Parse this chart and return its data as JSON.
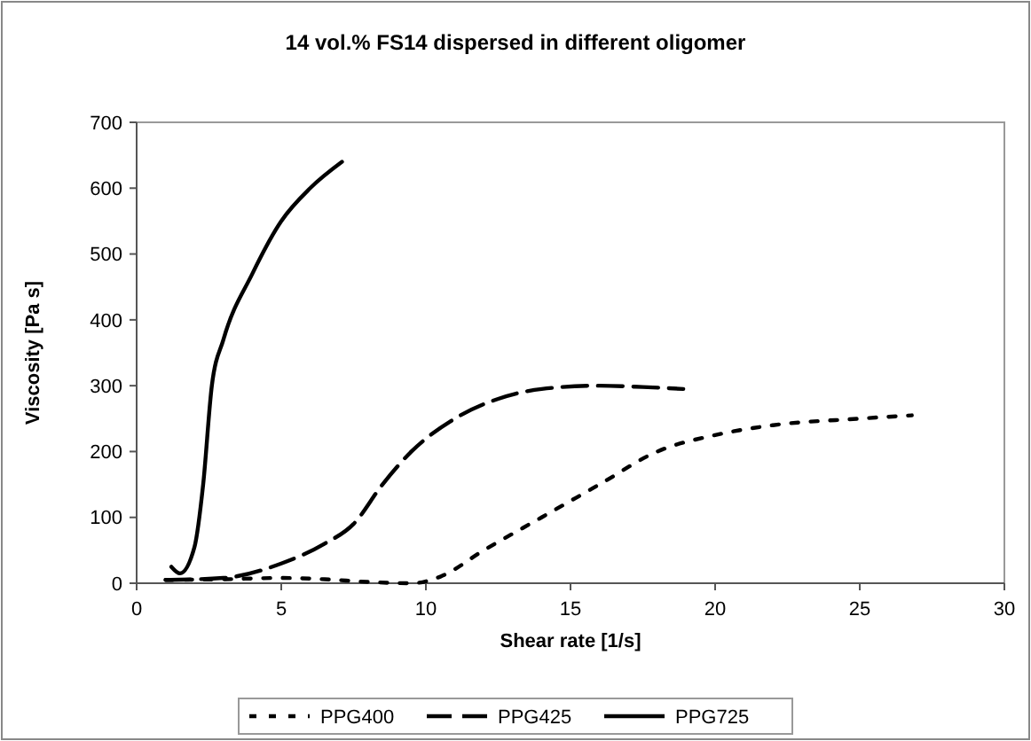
{
  "chart_data": {
    "type": "line",
    "title": "14 vol.% FS14 dispersed in different oligomer",
    "xlabel": "Shear rate [1/s]",
    "ylabel": "Viscosity [Pa s]",
    "xlim": [
      0,
      30
    ],
    "xticks": [
      0,
      5,
      10,
      15,
      20,
      25,
      30
    ],
    "ylim": [
      0,
      700
    ],
    "yticks": [
      0,
      100,
      200,
      300,
      400,
      500,
      600,
      700
    ],
    "grid": false,
    "legend": "bottom",
    "marker": "none",
    "series": [
      {
        "name": "PPG400",
        "color": "#000000",
        "line_style": "dotted",
        "x": [
          1,
          3,
          5,
          6.5,
          8,
          9.5,
          10.5,
          12,
          14,
          16,
          18,
          20,
          22,
          25,
          26.8
        ],
        "values": [
          5,
          6,
          8,
          6,
          2,
          0,
          10,
          50,
          100,
          150,
          200,
          225,
          240,
          250,
          255
        ]
      },
      {
        "name": "PPG425",
        "color": "#000000",
        "line_style": "dashed",
        "x": [
          1,
          3,
          5,
          6.5,
          7.5,
          8.5,
          9.5,
          11,
          12.5,
          14,
          16,
          17.5,
          18.9
        ],
        "values": [
          5,
          8,
          30,
          60,
          90,
          150,
          200,
          250,
          280,
          295,
          300,
          298,
          295
        ]
      },
      {
        "name": "PPG725",
        "color": "#000000",
        "line_style": "solid",
        "x": [
          1.2,
          1.5,
          2,
          2.3,
          2.6,
          3,
          4,
          5,
          6,
          7.1
        ],
        "values": [
          25,
          15,
          55,
          150,
          300,
          370,
          470,
          550,
          600,
          640
        ]
      }
    ]
  }
}
